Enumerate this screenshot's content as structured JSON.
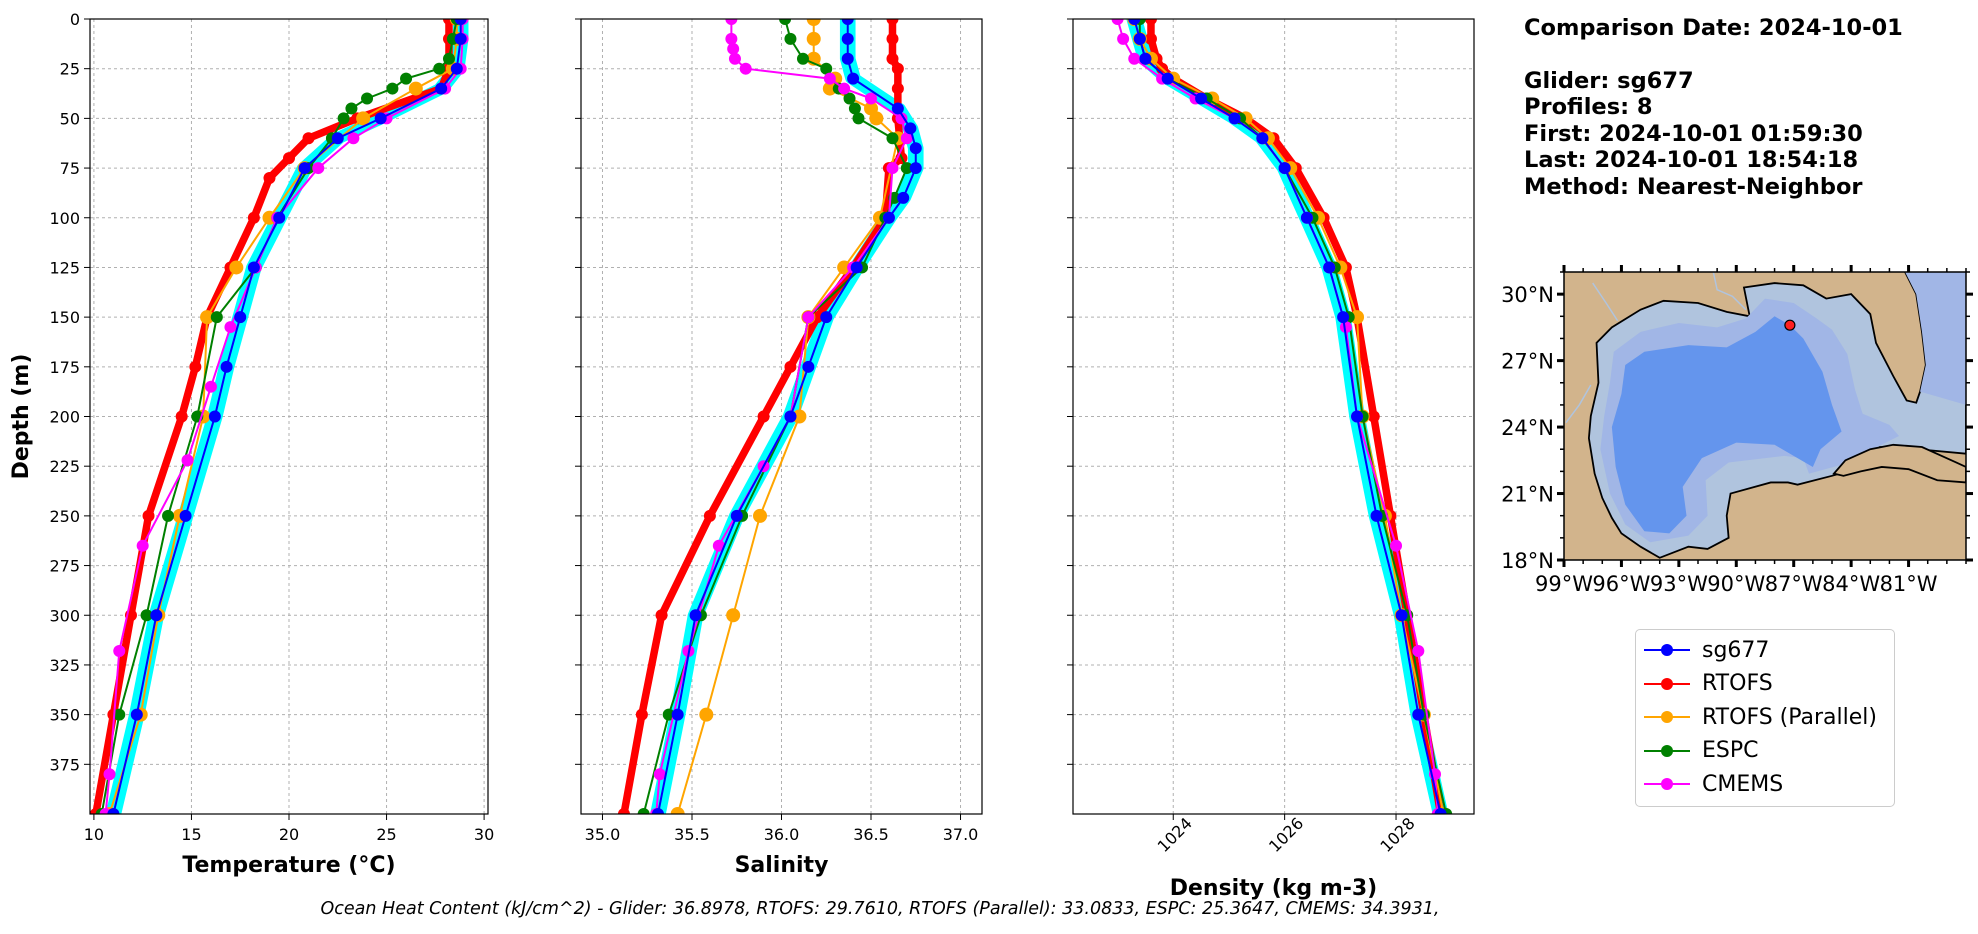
{
  "chart_data": [
    {
      "type": "line",
      "xlabel": "Temperature (°C)",
      "ylabel": "Depth (m)",
      "xlim": [
        9.8,
        30.2
      ],
      "ylim": [
        400,
        0
      ],
      "xticks": [
        10,
        15,
        20,
        25,
        30
      ],
      "yticks": [
        0,
        25,
        50,
        75,
        100,
        125,
        150,
        175,
        200,
        225,
        250,
        275,
        300,
        325,
        350,
        375
      ],
      "grid": true,
      "series": [
        {
          "name": "sg677",
          "color": "#0000ff",
          "depth": [
            0,
            10,
            25,
            35,
            50,
            60,
            75,
            100,
            125,
            150,
            175,
            200,
            250,
            300,
            350,
            400
          ],
          "values": [
            28.8,
            28.8,
            28.6,
            27.8,
            24.7,
            22.5,
            20.8,
            19.5,
            18.2,
            17.5,
            16.8,
            16.2,
            14.7,
            13.2,
            12.2,
            11.0
          ]
        },
        {
          "name": "RTOFS",
          "color": "#ff0000",
          "depth": [
            0,
            10,
            25,
            35,
            50,
            60,
            70,
            80,
            100,
            125,
            150,
            175,
            200,
            250,
            300,
            350,
            400
          ],
          "values": [
            28.2,
            28.2,
            28.2,
            27.8,
            23.5,
            21.0,
            20.0,
            19.0,
            18.2,
            17.0,
            15.8,
            15.2,
            14.5,
            12.8,
            11.9,
            11.0,
            10.1
          ]
        },
        {
          "name": "RTOFS (Parallel)",
          "color": "#ffa500",
          "depth": [
            0,
            10,
            25,
            35,
            50,
            75,
            100,
            125,
            150,
            200,
            250,
            300,
            350,
            400
          ],
          "values": [
            28.6,
            28.6,
            28.4,
            26.5,
            23.8,
            20.8,
            19.0,
            17.3,
            15.8,
            15.6,
            14.4,
            13.3,
            12.4,
            10.8
          ]
        },
        {
          "name": "ESPC",
          "color": "#008000",
          "depth": [
            0,
            10,
            20,
            25,
            30,
            35,
            40,
            45,
            50,
            60,
            75,
            100,
            125,
            150,
            200,
            250,
            300,
            350,
            400
          ],
          "values": [
            28.6,
            28.4,
            28.2,
            27.7,
            26.0,
            25.3,
            24.0,
            23.2,
            22.8,
            22.2,
            21.0,
            19.4,
            18.3,
            16.3,
            15.3,
            13.8,
            12.7,
            11.3,
            10.4
          ]
        },
        {
          "name": "CMEMS",
          "color": "#ff00ff",
          "depth": [
            0,
            10,
            25,
            35,
            50,
            60,
            75,
            100,
            125,
            155,
            185,
            222,
            265,
            318,
            380,
            400
          ],
          "values": [
            28.9,
            28.9,
            28.8,
            28.0,
            25.0,
            23.3,
            21.5,
            19.4,
            18.3,
            17.0,
            16.0,
            14.8,
            12.5,
            11.3,
            10.8,
            10.6
          ]
        }
      ]
    },
    {
      "type": "line",
      "xlabel": "Salinity",
      "ylabel": "",
      "xlim": [
        34.88,
        37.12
      ],
      "ylim": [
        400,
        0
      ],
      "xticks": [
        35.0,
        35.5,
        36.0,
        36.5,
        37.0
      ],
      "grid": true,
      "series": [
        {
          "name": "sg677",
          "color": "#0000ff",
          "depth": [
            0,
            10,
            20,
            30,
            45,
            55,
            65,
            75,
            90,
            100,
            125,
            150,
            175,
            200,
            250,
            300,
            350,
            400
          ],
          "values": [
            36.37,
            36.37,
            36.37,
            36.4,
            36.65,
            36.72,
            36.75,
            36.75,
            36.68,
            36.6,
            36.42,
            36.25,
            36.15,
            36.05,
            35.75,
            35.52,
            35.42,
            35.31
          ]
        },
        {
          "name": "RTOFS",
          "color": "#ff0000",
          "depth": [
            0,
            10,
            20,
            25,
            35,
            50,
            60,
            70,
            75,
            100,
            125,
            150,
            175,
            200,
            250,
            300,
            350,
            400
          ],
          "values": [
            36.62,
            36.62,
            36.62,
            36.65,
            36.65,
            36.65,
            36.66,
            36.67,
            36.6,
            36.58,
            36.4,
            36.2,
            36.05,
            35.9,
            35.6,
            35.33,
            35.22,
            35.12
          ]
        },
        {
          "name": "RTOFS (Parallel)",
          "color": "#ffa500",
          "depth": [
            0,
            10,
            20,
            30,
            35,
            45,
            50,
            60,
            100,
            125,
            150,
            200,
            250,
            300,
            350,
            400
          ],
          "values": [
            36.18,
            36.18,
            36.18,
            36.3,
            36.27,
            36.5,
            36.53,
            36.65,
            36.55,
            36.35,
            36.15,
            36.1,
            35.88,
            35.73,
            35.58,
            35.42
          ]
        },
        {
          "name": "ESPC",
          "color": "#008000",
          "depth": [
            0,
            10,
            20,
            25,
            35,
            40,
            45,
            50,
            60,
            75,
            90,
            100,
            125,
            150,
            200,
            250,
            300,
            350,
            400
          ],
          "values": [
            36.02,
            36.05,
            36.12,
            36.25,
            36.32,
            36.38,
            36.41,
            36.43,
            36.62,
            36.7,
            36.63,
            36.58,
            36.45,
            36.15,
            36.05,
            35.78,
            35.55,
            35.37,
            35.23
          ]
        },
        {
          "name": "CMEMS",
          "color": "#ff00ff",
          "depth": [
            0,
            10,
            15,
            20,
            25,
            30,
            35,
            40,
            50,
            60,
            75,
            100,
            125,
            150,
            200,
            225,
            265,
            318,
            380,
            400
          ],
          "values": [
            35.72,
            35.72,
            35.73,
            35.74,
            35.8,
            36.27,
            36.35,
            36.5,
            36.67,
            36.7,
            36.62,
            36.6,
            36.4,
            36.15,
            36.05,
            35.9,
            35.65,
            35.48,
            35.32,
            35.3
          ]
        }
      ]
    },
    {
      "type": "line",
      "xlabel": "Density (kg m-3)",
      "ylabel": "",
      "xlim": [
        1022.2,
        1029.4
      ],
      "ylim": [
        400,
        0
      ],
      "xticks": [
        1024,
        1026,
        1028
      ],
      "grid": true,
      "series": [
        {
          "name": "sg677",
          "color": "#0000ff",
          "depth": [
            0,
            10,
            20,
            30,
            40,
            50,
            60,
            75,
            100,
            125,
            150,
            200,
            250,
            300,
            350,
            400
          ],
          "values": [
            1023.3,
            1023.4,
            1023.5,
            1023.9,
            1024.5,
            1025.1,
            1025.6,
            1026.0,
            1026.4,
            1026.8,
            1027.05,
            1027.3,
            1027.65,
            1028.1,
            1028.4,
            1028.8
          ]
        },
        {
          "name": "RTOFS",
          "color": "#ff0000",
          "depth": [
            0,
            10,
            20,
            25,
            30,
            40,
            50,
            60,
            75,
            100,
            125,
            150,
            200,
            250,
            300,
            350,
            400
          ],
          "values": [
            1023.6,
            1023.6,
            1023.7,
            1023.8,
            1024.0,
            1024.6,
            1025.3,
            1025.8,
            1026.2,
            1026.7,
            1027.1,
            1027.3,
            1027.6,
            1027.9,
            1028.2,
            1028.5,
            1028.8
          ]
        },
        {
          "name": "RTOFS (Parallel)",
          "color": "#ffa500",
          "depth": [
            0,
            10,
            20,
            30,
            40,
            50,
            60,
            75,
            100,
            125,
            150,
            200,
            250,
            300,
            350,
            400
          ],
          "values": [
            1023.3,
            1023.4,
            1023.6,
            1024.0,
            1024.7,
            1025.3,
            1025.7,
            1026.1,
            1026.6,
            1027.0,
            1027.3,
            1027.4,
            1027.8,
            1028.1,
            1028.5,
            1028.85
          ]
        },
        {
          "name": "ESPC",
          "color": "#008000",
          "depth": [
            0,
            10,
            20,
            30,
            40,
            50,
            60,
            75,
            100,
            125,
            150,
            200,
            250,
            300,
            350,
            400
          ],
          "values": [
            1023.4,
            1023.4,
            1023.5,
            1023.9,
            1024.6,
            1025.2,
            1025.6,
            1026.0,
            1026.5,
            1026.9,
            1027.15,
            1027.4,
            1027.75,
            1028.2,
            1028.5,
            1028.9
          ]
        },
        {
          "name": "CMEMS",
          "color": "#ff00ff",
          "depth": [
            0,
            10,
            20,
            30,
            40,
            50,
            60,
            75,
            100,
            125,
            155,
            200,
            265,
            318,
            380,
            400
          ],
          "values": [
            1023.0,
            1023.1,
            1023.3,
            1023.8,
            1024.4,
            1025.1,
            1025.6,
            1026.0,
            1026.4,
            1026.8,
            1027.1,
            1027.3,
            1028.0,
            1028.4,
            1028.7,
            1028.75
          ]
        }
      ]
    },
    {
      "type": "map",
      "xlim": [
        -99,
        -78
      ],
      "ylim": [
        18,
        31
      ],
      "xticks": [
        "99°W",
        "96°W",
        "93°W",
        "90°W",
        "87°W",
        "84°W",
        "81°W"
      ],
      "yticks": [
        "18°N",
        "21°N",
        "24°N",
        "27°N",
        "30°N"
      ],
      "marker": {
        "lon": -87.2,
        "lat": 28.6,
        "color": "#ff2020"
      },
      "colors": {
        "land": "#d2b48c",
        "shelf": "#b0c4de",
        "slope": "#a1b6e6",
        "deep": "#6495ed"
      }
    }
  ],
  "info": {
    "comparison": "Comparison Date: 2024-10-01",
    "glider": "Glider: sg677",
    "profiles": "Profiles: 8",
    "first": "First: 2024-10-01 01:59:30",
    "last": "Last: 2024-10-01 18:54:18",
    "method": "Method: Nearest-Neighbor"
  },
  "legend": [
    {
      "label": "sg677",
      "color": "#0000ff"
    },
    {
      "label": "RTOFS",
      "color": "#ff0000"
    },
    {
      "label": "RTOFS (Parallel)",
      "color": "#ffa500"
    },
    {
      "label": "ESPC",
      "color": "#008000"
    },
    {
      "label": "CMEMS",
      "color": "#ff00ff"
    }
  ],
  "footer": "Ocean Heat Content (kJ/cm^2) - Glider: 36.8978,  RTOFS: 29.7610,  RTOFS (Parallel): 33.0833,  ESPC: 25.3647,  CMEMS: 34.3931,"
}
